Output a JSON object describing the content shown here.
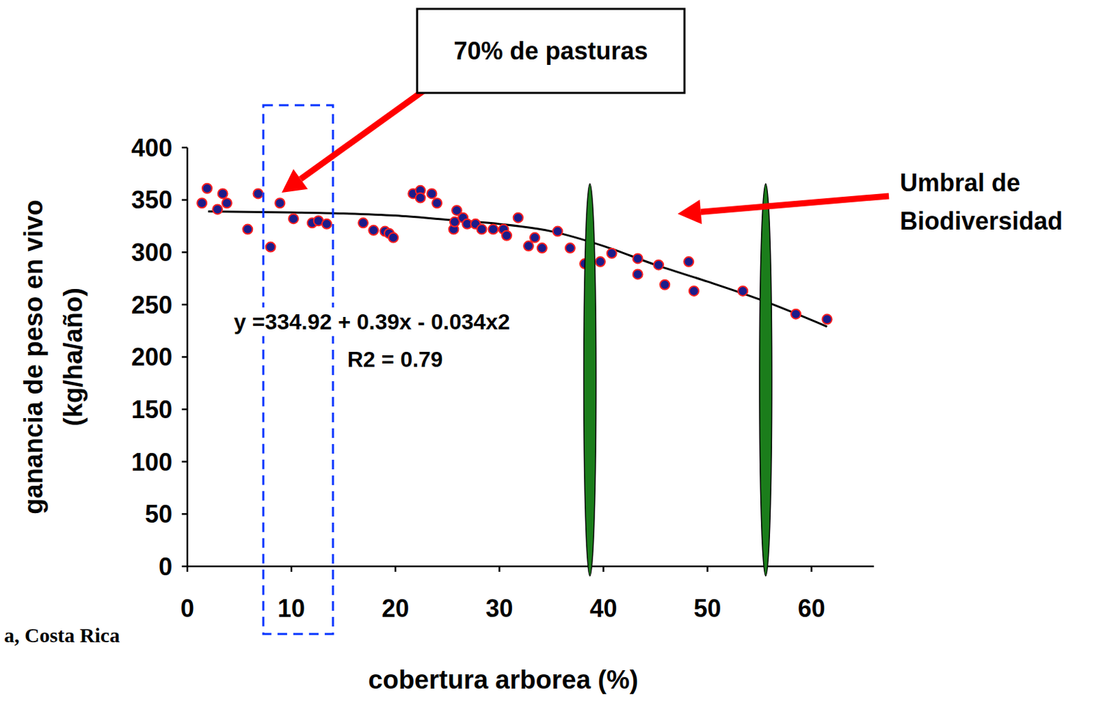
{
  "chart_data": {
    "type": "scatter",
    "x_label": "cobertura arborea (%)",
    "y_label": "ganancia de peso en vivo (kg/ha/año)",
    "xlim": [
      0,
      66
    ],
    "ylim": [
      0,
      400
    ],
    "xticks": [
      0,
      10,
      20,
      30,
      40,
      50,
      60
    ],
    "yticks": [
      0,
      50,
      100,
      150,
      200,
      250,
      300,
      350,
      400
    ],
    "grid": false,
    "series": [
      {
        "type": "scatter",
        "color": "#1c1c8a",
        "marker": "circle",
        "x": [
          1.4,
          1.9,
          2.9,
          3.4,
          3.8,
          5.8,
          6.8,
          8.0,
          8.9,
          10.2,
          12.0,
          12.6,
          13.4,
          16.9,
          17.9,
          19.0,
          19.4,
          19.8,
          21.7,
          22.4,
          22.4,
          23.5,
          24.0,
          25.6,
          25.9,
          25.7,
          26.5,
          26.9,
          27.7,
          28.3,
          29.4,
          30.4,
          30.7,
          31.8,
          32.8,
          33.4,
          34.1,
          35.6,
          36.8,
          38.2,
          39.7,
          40.8,
          43.3,
          43.3,
          45.3,
          45.9,
          48.2,
          48.7,
          53.4,
          58.5,
          61.5
        ],
        "values": [
          347,
          361,
          341,
          356,
          347,
          322,
          356,
          305,
          347,
          332,
          328,
          330,
          327,
          328,
          321,
          320,
          318,
          314,
          356,
          359,
          352,
          356,
          347,
          322,
          340,
          329,
          333,
          327,
          327,
          322,
          322,
          322,
          316,
          333,
          306,
          314,
          304,
          320,
          304,
          289,
          291,
          299,
          294,
          279,
          288,
          269,
          291,
          263,
          263,
          241,
          236
        ]
      },
      {
        "type": "line",
        "color": "#000000",
        "x": [
          2,
          10,
          15,
          20,
          25,
          30,
          35,
          40,
          45,
          50,
          55,
          61.5
        ],
        "values": [
          339,
          338,
          337,
          335,
          331,
          327,
          320,
          306,
          288,
          272,
          255,
          229
        ]
      }
    ],
    "annotations": [
      {
        "text": "70% de pasturas",
        "x_range": [
          7.3,
          14.0
        ]
      },
      {
        "text": "Umbral de Biodiversidad",
        "x": [
          38.7,
          55.6
        ]
      },
      {
        "text": "y =334.92 + 0.39x - 0.034x2"
      },
      {
        "text": "R2 = 0.79"
      }
    ],
    "source": "a, Costa Rica"
  }
}
